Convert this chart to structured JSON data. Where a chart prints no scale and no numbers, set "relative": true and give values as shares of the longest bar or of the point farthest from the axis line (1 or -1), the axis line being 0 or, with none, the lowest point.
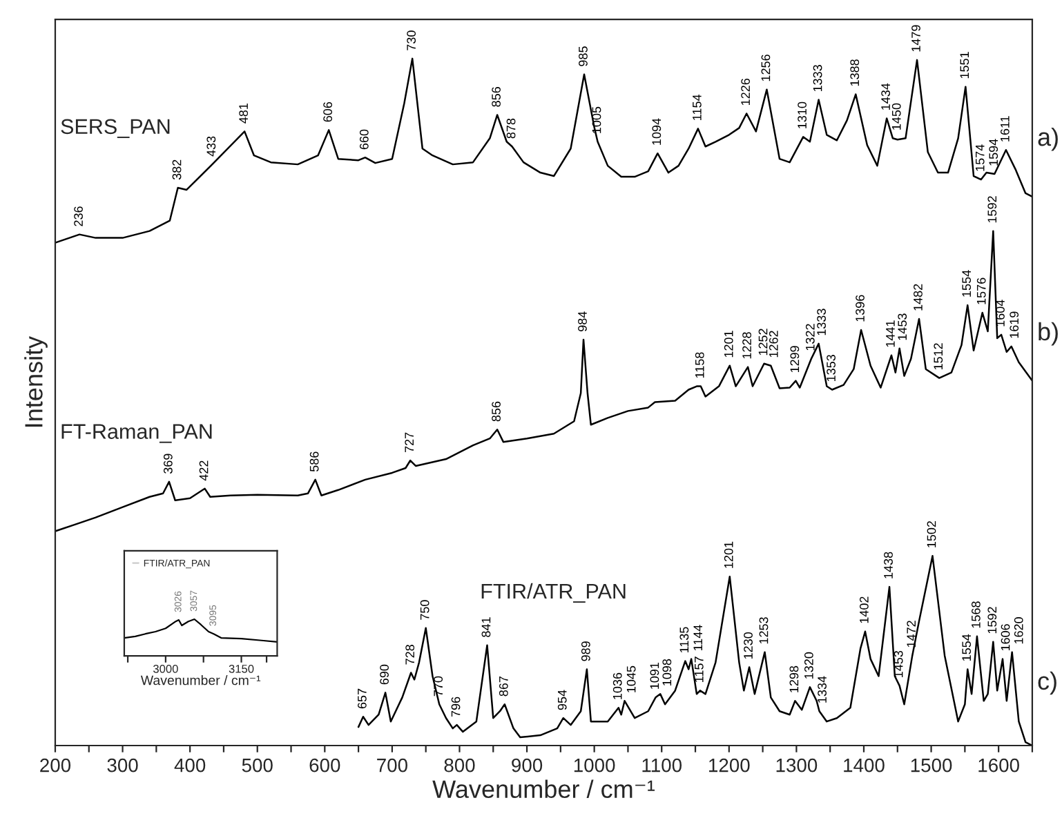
{
  "chart_data": [
    {
      "type": "line",
      "relative": true,
      "xlabel": "Wavenumber / cm⁻¹",
      "ylabel": "Intensity",
      "tick_labels": "x",
      "xlim": [
        200,
        1650
      ],
      "xticks": [
        200,
        {
          "value": 250,
          "label": null
        },
        300,
        {
          "value": 350,
          "label": null
        },
        400,
        {
          "value": 450,
          "label": null
        },
        500,
        {
          "value": 550,
          "label": null
        },
        600,
        {
          "value": 650,
          "label": null
        },
        700,
        {
          "value": 750,
          "label": null
        },
        800,
        {
          "value": 850,
          "label": null
        },
        900,
        {
          "value": 950,
          "label": null
        },
        1000,
        {
          "value": 1050,
          "label": null
        },
        1100,
        {
          "value": 1150,
          "label": null
        },
        1200,
        {
          "value": 1250,
          "label": null
        },
        1300,
        {
          "value": 1350,
          "label": null
        },
        1400,
        {
          "value": 1450,
          "label": null
        },
        1500,
        {
          "value": 1550,
          "label": null
        },
        1600,
        {
          "value": 1650,
          "label": null
        }
      ],
      "series": [
        {
          "name": "SERS_PAN",
          "color": "#000000",
          "x": [
            200,
            236,
            260,
            300,
            340,
            370,
            382,
            395,
            433,
            481,
            495,
            520,
            560,
            590,
            606,
            620,
            650,
            660,
            675,
            700,
            718,
            730,
            745,
            760,
            790,
            820,
            845,
            856,
            870,
            878,
            895,
            920,
            940,
            965,
            985,
            1000,
            1005,
            1020,
            1040,
            1060,
            1080,
            1094,
            1110,
            1125,
            1140,
            1154,
            1165,
            1180,
            1200,
            1215,
            1226,
            1240,
            1256,
            1275,
            1290,
            1310,
            1320,
            1333,
            1345,
            1360,
            1375,
            1388,
            1405,
            1420,
            1434,
            1443,
            1450,
            1462,
            1479,
            1495,
            1510,
            1525,
            1540,
            1551,
            1563,
            1574,
            1582,
            1594,
            1611,
            1625,
            1640,
            1650
          ],
          "values": [
            0.732,
            0.744,
            0.739,
            0.739,
            0.749,
            0.764,
            0.812,
            0.809,
            0.846,
            0.894,
            0.859,
            0.849,
            0.846,
            0.859,
            0.896,
            0.854,
            0.852,
            0.856,
            0.848,
            0.854,
            0.935,
            1.0,
            0.869,
            0.859,
            0.846,
            0.849,
            0.884,
            0.918,
            0.879,
            0.872,
            0.849,
            0.834,
            0.829,
            0.869,
            0.977,
            0.9,
            0.879,
            0.844,
            0.828,
            0.828,
            0.836,
            0.862,
            0.834,
            0.844,
            0.869,
            0.898,
            0.872,
            0.879,
            0.889,
            0.899,
            0.92,
            0.894,
            0.955,
            0.854,
            0.849,
            0.886,
            0.879,
            0.94,
            0.889,
            0.881,
            0.91,
            0.948,
            0.874,
            0.844,
            0.913,
            0.884,
            0.882,
            0.884,
            0.998,
            0.864,
            0.834,
            0.834,
            0.884,
            0.959,
            0.829,
            0.824,
            0.834,
            0.832,
            0.867,
            0.839,
            0.804,
            0.799
          ]
        },
        {
          "name": "FT-Raman_PAN",
          "color": "#000000",
          "x": [
            200,
            230,
            260,
            300,
            340,
            360,
            369,
            378,
            400,
            422,
            430,
            460,
            500,
            560,
            575,
            586,
            595,
            620,
            660,
            700,
            720,
            727,
            735,
            780,
            820,
            845,
            856,
            865,
            900,
            940,
            970,
            980,
            984,
            990,
            995,
            1020,
            1050,
            1080,
            1090,
            1120,
            1140,
            1152,
            1158,
            1165,
            1185,
            1201,
            1210,
            1228,
            1235,
            1252,
            1262,
            1275,
            1290,
            1299,
            1305,
            1322,
            1333,
            1345,
            1353,
            1370,
            1385,
            1396,
            1410,
            1425,
            1441,
            1447,
            1453,
            1460,
            1470,
            1482,
            1492,
            1512,
            1530,
            1545,
            1554,
            1563,
            1576,
            1584,
            1592,
            1598,
            1604,
            1612,
            1619,
            1630,
            1650
          ],
          "values": [
            0.312,
            0.322,
            0.332,
            0.347,
            0.362,
            0.367,
            0.384,
            0.357,
            0.36,
            0.374,
            0.362,
            0.364,
            0.365,
            0.364,
            0.367,
            0.387,
            0.364,
            0.372,
            0.387,
            0.397,
            0.404,
            0.415,
            0.407,
            0.417,
            0.437,
            0.447,
            0.46,
            0.442,
            0.447,
            0.454,
            0.472,
            0.513,
            0.591,
            0.513,
            0.467,
            0.477,
            0.487,
            0.492,
            0.5,
            0.502,
            0.518,
            0.523,
            0.523,
            0.508,
            0.523,
            0.553,
            0.523,
            0.551,
            0.523,
            0.556,
            0.553,
            0.52,
            0.521,
            0.531,
            0.521,
            0.563,
            0.585,
            0.523,
            0.518,
            0.525,
            0.548,
            0.605,
            0.553,
            0.521,
            0.568,
            0.543,
            0.578,
            0.538,
            0.563,
            0.621,
            0.548,
            0.535,
            0.543,
            0.583,
            0.641,
            0.575,
            0.63,
            0.603,
            0.749,
            0.593,
            0.598,
            0.573,
            0.581,
            0.558,
            0.531
          ]
        },
        {
          "name": "FTIR/ATR_PAN",
          "color": "#000000",
          "x": [
            650,
            657,
            665,
            680,
            690,
            698,
            715,
            728,
            733,
            740,
            750,
            760,
            770,
            780,
            790,
            796,
            805,
            825,
            841,
            850,
            860,
            867,
            880,
            890,
            920,
            945,
            954,
            965,
            980,
            989,
            995,
            1020,
            1036,
            1040,
            1045,
            1060,
            1080,
            1091,
            1098,
            1105,
            1120,
            1135,
            1140,
            1144,
            1152,
            1157,
            1165,
            1180,
            1201,
            1215,
            1222,
            1230,
            1238,
            1253,
            1262,
            1275,
            1290,
            1298,
            1308,
            1320,
            1330,
            1334,
            1345,
            1360,
            1380,
            1395,
            1402,
            1410,
            1422,
            1438,
            1446,
            1453,
            1460,
            1472,
            1482,
            1502,
            1520,
            1540,
            1550,
            1554,
            1560,
            1568,
            1578,
            1584,
            1592,
            1598,
            1606,
            1612,
            1620,
            1630,
            1640,
            1650
          ],
          "values": [
            0.027,
            0.042,
            0.03,
            0.045,
            0.077,
            0.035,
            0.07,
            0.106,
            0.096,
            0.121,
            0.171,
            0.101,
            0.06,
            0.04,
            0.025,
            0.03,
            0.02,
            0.035,
            0.146,
            0.04,
            0.05,
            0.06,
            0.025,
            0.012,
            0.015,
            0.025,
            0.04,
            0.03,
            0.05,
            0.111,
            0.035,
            0.035,
            0.055,
            0.045,
            0.065,
            0.04,
            0.05,
            0.07,
            0.075,
            0.06,
            0.08,
            0.123,
            0.111,
            0.126,
            0.075,
            0.08,
            0.075,
            0.121,
            0.246,
            0.121,
            0.08,
            0.114,
            0.075,
            0.136,
            0.07,
            0.05,
            0.045,
            0.065,
            0.052,
            0.085,
            0.065,
            0.05,
            0.035,
            0.04,
            0.055,
            0.141,
            0.166,
            0.126,
            0.101,
            0.231,
            0.101,
            0.087,
            0.06,
            0.131,
            0.181,
            0.276,
            0.131,
            0.035,
            0.06,
            0.111,
            0.075,
            0.159,
            0.065,
            0.075,
            0.151,
            0.08,
            0.126,
            0.065,
            0.136,
            0.035,
            0.005,
            0.0
          ]
        }
      ],
      "annotations": [
        "a)",
        "b)",
        "c)",
        {
          "text": "236",
          "x": 236,
          "y": 0.744
        },
        {
          "text": "382",
          "x": 382,
          "y": 0.812
        },
        {
          "text": "433",
          "x": 433,
          "y": 0.846
        },
        {
          "text": "481",
          "x": 481,
          "y": 0.894
        },
        {
          "text": "606",
          "x": 606,
          "y": 0.896
        },
        {
          "text": "660",
          "x": 660,
          "y": 0.856
        },
        {
          "text": "730",
          "x": 730,
          "y": 1.0
        },
        {
          "text": "856",
          "x": 856,
          "y": 0.918
        },
        {
          "text": "878",
          "x": 878,
          "y": 0.872
        },
        {
          "text": "985",
          "x": 985,
          "y": 0.977
        },
        {
          "text": "1005",
          "x": 1005,
          "y": 0.879
        },
        {
          "text": "1094",
          "x": 1094,
          "y": 0.862
        },
        {
          "text": "1154",
          "x": 1154,
          "y": 0.898
        },
        {
          "text": "1226",
          "x": 1226,
          "y": 0.92
        },
        {
          "text": "1256",
          "x": 1256,
          "y": 0.955
        },
        {
          "text": "1310",
          "x": 1310,
          "y": 0.886
        },
        {
          "text": "1333",
          "x": 1333,
          "y": 0.94
        },
        {
          "text": "1388",
          "x": 1388,
          "y": 0.948
        },
        {
          "text": "1434",
          "x": 1434,
          "y": 0.913
        },
        {
          "text": "1450",
          "x": 1450,
          "y": 0.884
        },
        {
          "text": "1479",
          "x": 1479,
          "y": 0.998
        },
        {
          "text": "1551",
          "x": 1551,
          "y": 0.959
        },
        {
          "text": "1574",
          "x": 1574,
          "y": 0.824
        },
        {
          "text": "1594",
          "x": 1594,
          "y": 0.832
        },
        {
          "text": "1611",
          "x": 1611,
          "y": 0.867
        },
        {
          "text": "369",
          "x": 369,
          "y": 0.384
        },
        {
          "text": "422",
          "x": 422,
          "y": 0.374
        },
        {
          "text": "586",
          "x": 586,
          "y": 0.387
        },
        {
          "text": "727",
          "x": 727,
          "y": 0.415
        },
        {
          "text": "856",
          "x": 856,
          "y": 0.46
        },
        {
          "text": "984",
          "x": 984,
          "y": 0.591
        },
        {
          "text": "1158",
          "x": 1158,
          "y": 0.523
        },
        {
          "text": "1201",
          "x": 1201,
          "y": 0.553
        },
        {
          "text": "1228",
          "x": 1228,
          "y": 0.551
        },
        {
          "text": "1252",
          "x": 1252,
          "y": 0.556
        },
        {
          "text": "1262",
          "x": 1262,
          "y": 0.553
        },
        {
          "text": "1299",
          "x": 1299,
          "y": 0.531
        },
        {
          "text": "1322",
          "x": 1322,
          "y": 0.563
        },
        {
          "text": "1333",
          "x": 1333,
          "y": 0.585
        },
        {
          "text": "1353",
          "x": 1353,
          "y": 0.518
        },
        {
          "text": "1396",
          "x": 1396,
          "y": 0.605
        },
        {
          "text": "1441",
          "x": 1441,
          "y": 0.568
        },
        {
          "text": "1453",
          "x": 1453,
          "y": 0.578
        },
        {
          "text": "1482",
          "x": 1482,
          "y": 0.621
        },
        {
          "text": "1512",
          "x": 1512,
          "y": 0.535
        },
        {
          "text": "1554",
          "x": 1554,
          "y": 0.641
        },
        {
          "text": "1576",
          "x": 1576,
          "y": 0.63
        },
        {
          "text": "1592",
          "x": 1592,
          "y": 0.749
        },
        {
          "text": "1604",
          "x": 1604,
          "y": 0.598
        },
        {
          "text": "1619",
          "x": 1619,
          "y": 0.581
        },
        {
          "text": "657",
          "x": 657,
          "y": 0.042
        },
        {
          "text": "690",
          "x": 690,
          "y": 0.077
        },
        {
          "text": "728",
          "x": 728,
          "y": 0.106
        },
        {
          "text": "750",
          "x": 750,
          "y": 0.171
        },
        {
          "text": "770",
          "x": 770,
          "y": 0.06
        },
        {
          "text": "796",
          "x": 796,
          "y": 0.03
        },
        {
          "text": "841",
          "x": 841,
          "y": 0.146
        },
        {
          "text": "867",
          "x": 867,
          "y": 0.06
        },
        {
          "text": "954",
          "x": 954,
          "y": 0.04
        },
        {
          "text": "989",
          "x": 989,
          "y": 0.111
        },
        {
          "text": "1036",
          "x": 1036,
          "y": 0.055
        },
        {
          "text": "1045",
          "x": 1045,
          "y": 0.065
        },
        {
          "text": "1091",
          "x": 1091,
          "y": 0.07
        },
        {
          "text": "1098",
          "x": 1098,
          "y": 0.075
        },
        {
          "text": "1135",
          "x": 1135,
          "y": 0.123
        },
        {
          "text": "1144",
          "x": 1144,
          "y": 0.126
        },
        {
          "text": "1157",
          "x": 1157,
          "y": 0.08
        },
        {
          "text": "1201",
          "x": 1201,
          "y": 0.246
        },
        {
          "text": "1230",
          "x": 1230,
          "y": 0.114
        },
        {
          "text": "1253",
          "x": 1253,
          "y": 0.136
        },
        {
          "text": "1298",
          "x": 1298,
          "y": 0.065
        },
        {
          "text": "1320",
          "x": 1320,
          "y": 0.085
        },
        {
          "text": "1334",
          "x": 1334,
          "y": 0.05
        },
        {
          "text": "1402",
          "x": 1402,
          "y": 0.166
        },
        {
          "text": "1438",
          "x": 1438,
          "y": 0.231
        },
        {
          "text": "1453",
          "x": 1453,
          "y": 0.087
        },
        {
          "text": "1472",
          "x": 1472,
          "y": 0.131
        },
        {
          "text": "1502",
          "x": 1502,
          "y": 0.276
        },
        {
          "text": "1554",
          "x": 1554,
          "y": 0.111
        },
        {
          "text": "1568",
          "x": 1568,
          "y": 0.159
        },
        {
          "text": "1592",
          "x": 1592,
          "y": 0.151
        },
        {
          "text": "1606",
          "x": 1606,
          "y": 0.126
        },
        {
          "text": "1620",
          "x": 1620,
          "y": 0.136
        }
      ]
    },
    {
      "type": "line",
      "relative": true,
      "xlabel": "Wavenumber / cm⁻¹",
      "tick_labels": "x",
      "legend": "top left",
      "xlim": [
        2918,
        3221
      ],
      "xticks": [
        {
          "value": 2925,
          "label": null
        },
        3000,
        {
          "value": 3075,
          "label": null
        },
        3150,
        {
          "value": 3200,
          "label": null
        }
      ],
      "series": [
        {
          "name": "FTIR/ATR_PAN",
          "color": "#000000",
          "x": [
            2918,
            2940,
            2960,
            2980,
            3000,
            3020,
            3026,
            3032,
            3045,
            3057,
            3070,
            3085,
            3095,
            3110,
            3150,
            3190,
            3221
          ],
          "values": [
            0.49,
            0.53,
            0.6,
            0.66,
            0.75,
            0.94,
            0.98,
            0.83,
            0.94,
            1.0,
            0.85,
            0.66,
            0.6,
            0.49,
            0.47,
            0.42,
            0.38
          ]
        }
      ],
      "annotations": [
        {
          "text": "3026",
          "x": 3026,
          "y": 0.98
        },
        {
          "text": "3057",
          "x": 3057,
          "y": 1.0
        },
        {
          "text": "3095",
          "x": 3095,
          "y": 0.6
        }
      ]
    }
  ]
}
